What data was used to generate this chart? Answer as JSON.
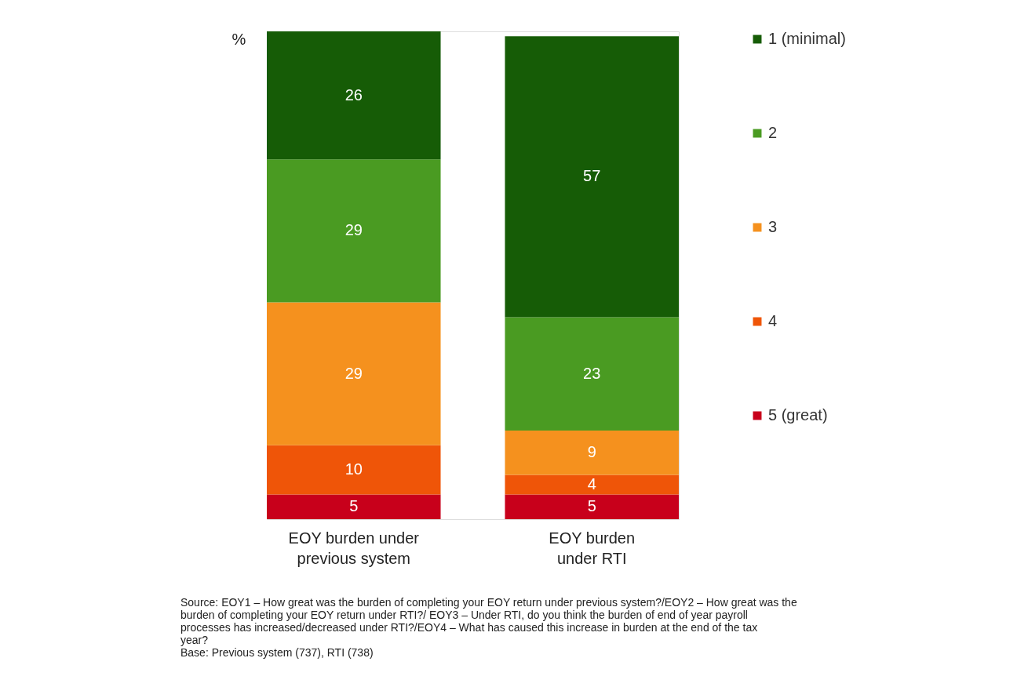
{
  "chart_data": {
    "type": "bar",
    "stacked": true,
    "data_labels": true,
    "legend": "right",
    "grid": false,
    "ylabel": "%",
    "categories": [
      "EOY burden under previous system",
      "EOY burden under RTI"
    ],
    "series": [
      {
        "name": "5 (great)",
        "color": "#c8001b",
        "values": [
          5,
          5
        ]
      },
      {
        "name": "4",
        "color": "#ef5508",
        "values": [
          10,
          4
        ]
      },
      {
        "name": "3",
        "color": "#f5911e",
        "values": [
          29,
          9
        ]
      },
      {
        "name": "2",
        "color": "#4a9b22",
        "values": [
          29,
          23
        ]
      },
      {
        "name": "1 (minimal)",
        "color": "#165c06",
        "values": [
          26,
          57
        ]
      }
    ],
    "annotations": [
      "Source: EOY1 – How great was the burden of completing your EOY return under previous system?/EOY2 – How great was the burden of completing your EOY return under RTI?/ EOY3 – Under RTI, do you think the burden of end of year payroll processes has increased/decreased under RTI?/EOY4 – What has caused this increase in burden at the end of the tax year?",
      "Base: Previous system (737), RTI (738)"
    ]
  }
}
